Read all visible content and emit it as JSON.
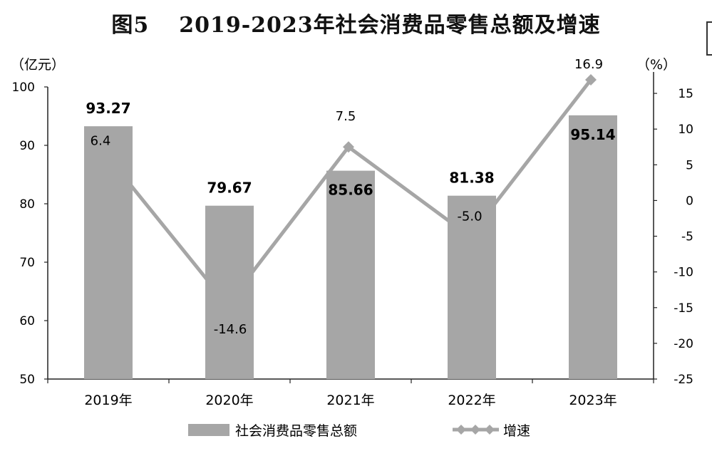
{
  "figure_label": "图5",
  "title": "2019-2023年社会消费品零售总额及增速",
  "chart_data": {
    "type": "bar",
    "categories": [
      "2019年",
      "2020年",
      "2021年",
      "2022年",
      "2023年"
    ],
    "series": [
      {
        "name": "社会消费品零售总额",
        "type": "bar",
        "axis": "left",
        "color": "#a6a6a6",
        "values": [
          93.27,
          79.67,
          85.66,
          81.38,
          95.14
        ],
        "labels": [
          "93.27",
          "79.67",
          "85.66",
          "81.38",
          "95.14"
        ]
      },
      {
        "name": "增速",
        "type": "line",
        "marker": "diamond",
        "axis": "right",
        "color": "#a6a6a6",
        "values": [
          6.4,
          -14.6,
          7.5,
          -5.0,
          16.9
        ],
        "labels": [
          "6.4",
          "-14.6",
          "7.5",
          "-5.0",
          "16.9"
        ]
      }
    ],
    "y_left": {
      "unit": "（亿元）",
      "ylim": [
        50,
        100
      ],
      "ticks": [
        50,
        60,
        70,
        80,
        90,
        100
      ]
    },
    "y_right": {
      "unit": "（%）",
      "ylim": [
        -25,
        18
      ],
      "ticks": [
        -25,
        -20,
        -15,
        -10,
        -5,
        0,
        5,
        10,
        15
      ]
    },
    "grid": false,
    "legend": "bottom"
  }
}
